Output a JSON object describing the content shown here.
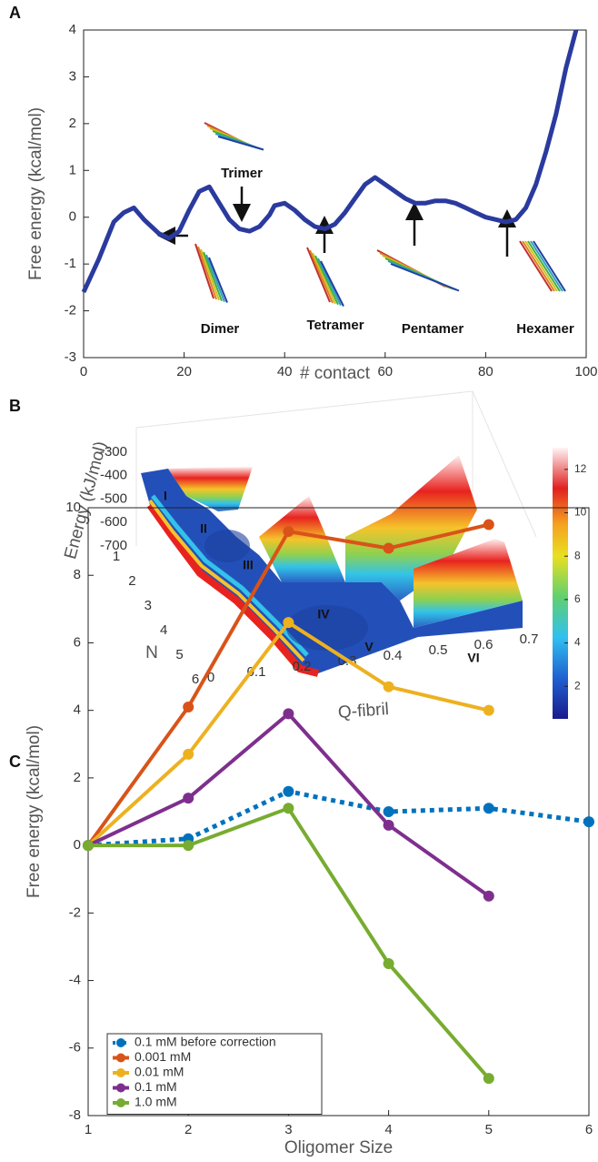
{
  "chart_data": [
    {
      "type": "line",
      "panel": "A",
      "xlabel": "# contact",
      "ylabel": "Free energy (kcal/mol)",
      "x": [
        0,
        3,
        6,
        8,
        10,
        12,
        15,
        17,
        19,
        21,
        23,
        25,
        27,
        29,
        31,
        33,
        35,
        37,
        38,
        40,
        42,
        44,
        46,
        48,
        50,
        52,
        54,
        56,
        58,
        60,
        62,
        64,
        66,
        68,
        70,
        72,
        74,
        76,
        78,
        80,
        82,
        84,
        86,
        88,
        90,
        92,
        94,
        96,
        98
      ],
      "series": [
        {
          "color": "#2a3a9e",
          "values": [
            -1.6,
            -0.9,
            -0.1,
            0.1,
            0.2,
            -0.05,
            -0.35,
            -0.45,
            -0.3,
            0.15,
            0.55,
            0.65,
            0.3,
            -0.05,
            -0.25,
            -0.3,
            -0.2,
            0.05,
            0.25,
            0.3,
            0.15,
            -0.05,
            -0.2,
            -0.25,
            -0.15,
            0.1,
            0.4,
            0.7,
            0.85,
            0.7,
            0.55,
            0.4,
            0.3,
            0.3,
            0.35,
            0.35,
            0.3,
            0.2,
            0.1,
            0,
            -0.05,
            -0.1,
            -0.05,
            0.2,
            0.7,
            1.4,
            2.2,
            3.2,
            4
          ]
        }
      ],
      "xlim": [
        0,
        100
      ],
      "xticks": [
        0,
        20,
        40,
        60,
        80,
        100
      ],
      "ylim": [
        -3,
        4
      ],
      "yticks": [
        -3,
        -2,
        -1,
        0,
        1,
        2,
        3,
        4
      ],
      "annotations": [
        "Trimer",
        "Dimer",
        "Tetramer",
        "Pentamer",
        "Hexamer"
      ]
    },
    {
      "type": "surface",
      "panel": "B",
      "zlabel": "Energy (kJ/mol)",
      "ylabel": "N",
      "xlabel": "Q-fibril",
      "xlim": [
        0,
        0.7
      ],
      "xticks": [
        0,
        0.1,
        0.2,
        0.3,
        0.4,
        0.5,
        0.6,
        0.7
      ],
      "ylim": [
        1,
        6
      ],
      "yticks": [
        1,
        2,
        3,
        4,
        5,
        6
      ],
      "zlim": [
        -700,
        -300
      ],
      "zticks": [
        -300,
        -400,
        -500,
        -600,
        -700
      ],
      "regions": [
        "I",
        "II",
        "III",
        "IV",
        "V",
        "VI"
      ],
      "clim": [
        0.5,
        13
      ],
      "cticks": [
        2,
        4,
        6,
        8,
        10,
        12
      ]
    },
    {
      "type": "line",
      "panel": "C",
      "xlabel": "Oligomer Size",
      "ylabel": "Free energy (kcal/mol)",
      "series": [
        {
          "name": "0.1 mM before correction",
          "color": "#0072bd",
          "dotted": true,
          "x": [
            1,
            2,
            3,
            4,
            5,
            6
          ],
          "values": [
            0,
            0.2,
            1.6,
            1.0,
            1.1,
            0.7
          ]
        },
        {
          "name": "0.001 mM",
          "color": "#d95319",
          "x": [
            1,
            2,
            3,
            4,
            5
          ],
          "values": [
            0,
            4.1,
            9.3,
            8.8,
            9.5
          ]
        },
        {
          "name": "0.01 mM",
          "color": "#edb120",
          "x": [
            1,
            2,
            3,
            4,
            5
          ],
          "values": [
            0,
            2.7,
            6.6,
            4.7,
            4.0
          ]
        },
        {
          "name": "0.1 mM",
          "color": "#7e2f8e",
          "x": [
            1,
            2,
            3,
            4,
            5
          ],
          "values": [
            0,
            1.4,
            3.9,
            0.6,
            -1.5
          ]
        },
        {
          "name": "1.0 mM",
          "color": "#77ac30",
          "x": [
            1,
            2,
            3,
            4,
            5
          ],
          "values": [
            0,
            0,
            1.1,
            -3.5,
            -6.9
          ]
        }
      ],
      "xlim": [
        1,
        6
      ],
      "xticks": [
        1,
        2,
        3,
        4,
        5,
        6
      ],
      "ylim": [
        -8,
        10
      ],
      "yticks": [
        -8,
        -6,
        -4,
        -2,
        0,
        2,
        4,
        6,
        8,
        10
      ],
      "legend": "lower left"
    }
  ]
}
